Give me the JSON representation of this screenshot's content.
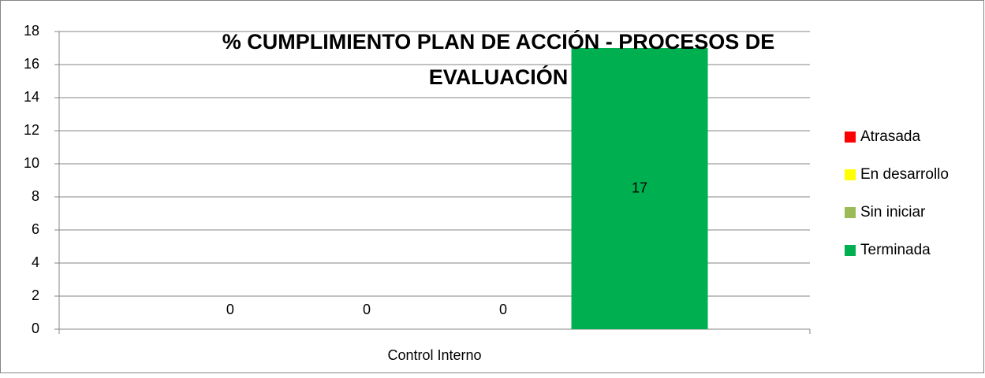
{
  "chart_data": {
    "type": "bar",
    "title": "% CUMPLIMIENTO PLAN DE ACCIÓN - PROCESOS DE EVALUACIÓN",
    "categories": [
      "Control Interno"
    ],
    "series": [
      {
        "name": "Atrasada",
        "color": "#ff0000",
        "values": [
          0
        ]
      },
      {
        "name": "En desarrollo",
        "color": "#ffff00",
        "values": [
          0
        ]
      },
      {
        "name": "Sin iniciar",
        "color": "#9bbb59",
        "values": [
          0
        ]
      },
      {
        "name": "Terminada",
        "color": "#00b050",
        "values": [
          17
        ]
      }
    ],
    "ylim": [
      0,
      18
    ],
    "yticks": [
      0,
      2,
      4,
      6,
      8,
      10,
      12,
      14,
      16,
      18
    ],
    "grid": true,
    "legend": "right",
    "data_labels": true
  }
}
